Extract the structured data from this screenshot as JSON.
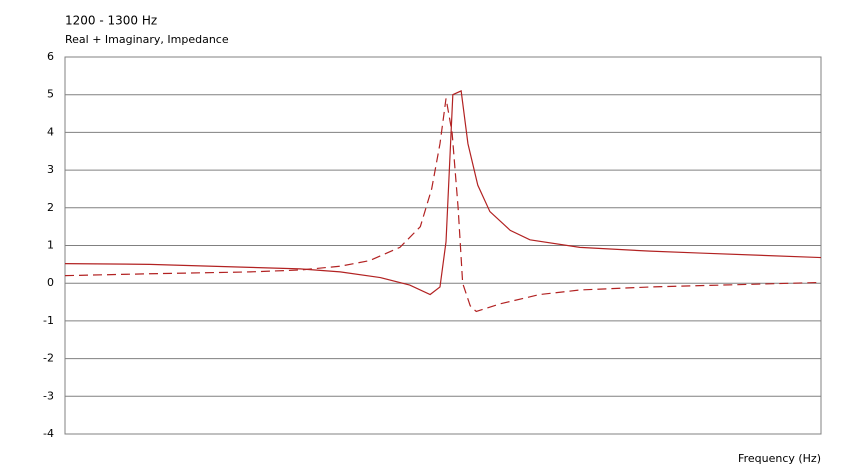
{
  "chart_data": {
    "type": "line",
    "title": "1200 - 1300 Hz",
    "subtitle": "Real + Imaginary, Impedance",
    "x_label": "Frequency  (Hz)",
    "xlim": [
      1200,
      1300
    ],
    "ylim": [
      -4,
      6
    ],
    "yticks": [
      -4,
      -3,
      -2,
      -1,
      0,
      1,
      2,
      3,
      4,
      5,
      6
    ],
    "grid": true,
    "series": [
      {
        "color": "#b22222",
        "dash": false,
        "x": [
          1200,
          1211.2,
          1224.5,
          1231.1,
          1236.4,
          1241.7,
          1245.6,
          1248.3,
          1249.6,
          1250.4,
          1251.3,
          1252.4,
          1253.3,
          1254.6,
          1256.2,
          1258.9,
          1261.5,
          1268.1,
          1277.4,
          1284.0,
          1300
        ],
        "values": [
          0.52,
          0.5,
          0.42,
          0.38,
          0.3,
          0.15,
          -0.05,
          -0.3,
          -0.1,
          1.1,
          5.0,
          5.1,
          3.7,
          2.6,
          1.9,
          1.4,
          1.15,
          0.95,
          0.85,
          0.8,
          0.68
        ]
      },
      {
        "color": "#b22222",
        "dash": true,
        "x": [
          1200,
          1211.2,
          1224.5,
          1231.1,
          1236.4,
          1240.3,
          1244.3,
          1247.0,
          1248.5,
          1249.6,
          1250.4,
          1251.2,
          1252.0,
          1252.6,
          1253.6,
          1254.4,
          1257.5,
          1262.8,
          1268.1,
          1277.4,
          1290.6,
          1300
        ],
        "values": [
          0.2,
          0.25,
          0.3,
          0.35,
          0.45,
          0.6,
          0.95,
          1.5,
          2.5,
          3.7,
          4.9,
          4.0,
          2.0,
          0.0,
          -0.6,
          -0.75,
          -0.55,
          -0.3,
          -0.18,
          -0.1,
          -0.03,
          0.02
        ]
      }
    ]
  }
}
